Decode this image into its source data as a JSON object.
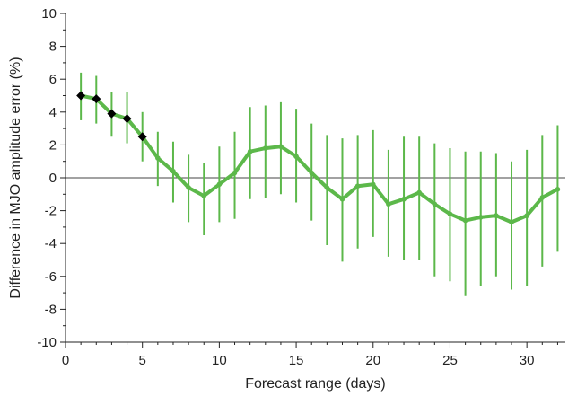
{
  "chart_data": {
    "type": "line",
    "xlabel": "Forecast range (days)",
    "ylabel": "Difference in MJO amplitude error (%)",
    "xlim": [
      0,
      32.5
    ],
    "ylim": [
      -10,
      10
    ],
    "x_ticks": [
      0,
      5,
      10,
      15,
      20,
      25,
      30
    ],
    "x_tick_labels": [
      "0",
      "5",
      "10",
      "15",
      "20",
      "25",
      "30"
    ],
    "y_ticks": [
      -10,
      -8,
      -6,
      -4,
      -2,
      0,
      2,
      4,
      6,
      8,
      10
    ],
    "y_tick_labels": [
      "-10",
      "-8",
      "-6",
      "-4",
      "-2",
      "0",
      "2",
      "4",
      "6",
      "8",
      "10"
    ],
    "zero_line": true,
    "grid": false,
    "series": [
      {
        "color": "#5cb84a",
        "highlight_color": "#000000",
        "x": [
          1,
          2,
          3,
          4,
          5,
          6,
          7,
          8,
          9,
          10,
          11,
          12,
          13,
          14,
          15,
          16,
          17,
          18,
          19,
          20,
          21,
          22,
          23,
          24,
          25,
          26,
          27,
          28,
          29,
          30,
          31,
          32
        ],
        "y": [
          5.0,
          4.8,
          3.9,
          3.6,
          2.5,
          1.2,
          0.4,
          -0.6,
          -1.1,
          -0.4,
          0.3,
          1.6,
          1.8,
          1.9,
          1.3,
          0.3,
          -0.6,
          -1.3,
          -0.5,
          -0.4,
          -1.6,
          -1.3,
          -0.9,
          -1.6,
          -2.2,
          -2.6,
          -2.4,
          -2.3,
          -2.7,
          -2.3,
          -1.2,
          -0.7
        ],
        "y_lower": [
          3.5,
          3.3,
          2.5,
          2.1,
          1.0,
          -0.5,
          -1.5,
          -2.7,
          -3.5,
          -2.7,
          -2.5,
          -1.3,
          -1.2,
          -1.0,
          -1.5,
          -2.6,
          -4.1,
          -5.1,
          -4.3,
          -3.6,
          -4.8,
          -5.0,
          -5.0,
          -6.0,
          -6.3,
          -7.2,
          -6.6,
          -6.0,
          -6.8,
          -6.6,
          -5.4,
          -4.5
        ],
        "y_upper": [
          6.4,
          6.2,
          5.2,
          5.2,
          4.0,
          2.8,
          2.2,
          1.4,
          0.9,
          1.9,
          2.8,
          4.3,
          4.4,
          4.6,
          4.2,
          3.3,
          2.6,
          2.4,
          2.6,
          2.9,
          1.7,
          2.5,
          2.5,
          2.1,
          1.8,
          1.6,
          1.6,
          1.5,
          1.0,
          1.7,
          2.6,
          3.2
        ],
        "highlighted_x": [
          1,
          2,
          3,
          4,
          5
        ]
      }
    ]
  }
}
